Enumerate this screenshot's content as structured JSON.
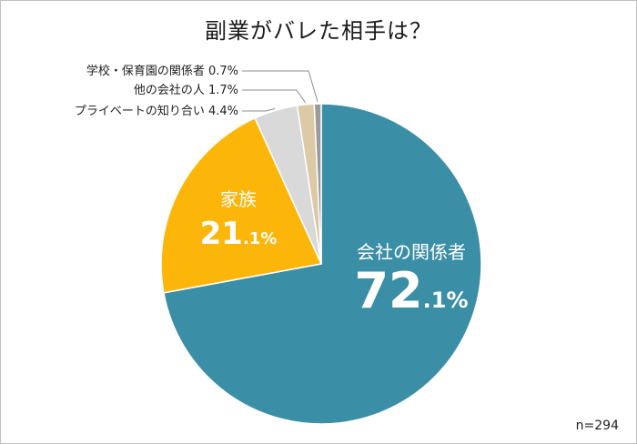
{
  "chart_data": {
    "type": "pie",
    "title": "副業がバレた相手は？",
    "note": "n=294",
    "slices": [
      {
        "name": "会社の関係者",
        "value": 72.1,
        "value_main": "72",
        "value_dec": ".1%",
        "color": "#3a8fa6",
        "label_pos": "inside"
      },
      {
        "name": "家族",
        "value": 21.1,
        "value_main": "21",
        "value_dec": ".1%",
        "color": "#fcb60a",
        "label_pos": "inside"
      },
      {
        "name": "プライベートの知り合い",
        "value": 4.4,
        "display": "プライベートの知り合い 4.4%",
        "color": "#d9d9d9",
        "label_pos": "outside"
      },
      {
        "name": "他の会社の人",
        "value": 1.7,
        "display": "他の会社の人 1.7%",
        "color": "#dcc9a6",
        "label_pos": "outside"
      },
      {
        "name": "学校・保育園の関係者",
        "value": 0.7,
        "display": "学校・保育園の関係者 0.7%",
        "color": "#9b9b9b",
        "label_pos": "outside"
      }
    ]
  }
}
